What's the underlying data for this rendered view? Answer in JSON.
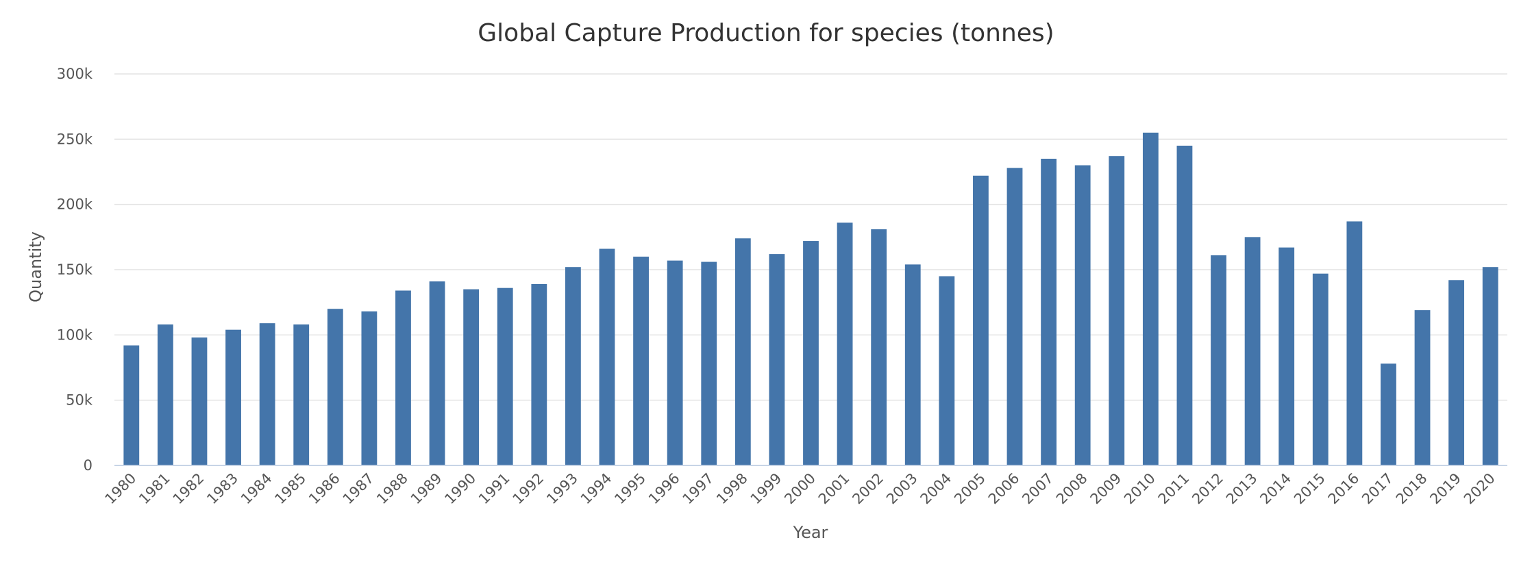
{
  "chart_data": {
    "type": "bar",
    "title": "Global Capture Production for species (tonnes)",
    "xlabel": "Year",
    "ylabel": "Quantity",
    "ylim": [
      0,
      300000
    ],
    "yticks": [
      {
        "value": 0,
        "label": "0"
      },
      {
        "value": 50000,
        "label": "50k"
      },
      {
        "value": 100000,
        "label": "100k"
      },
      {
        "value": 150000,
        "label": "150k"
      },
      {
        "value": 200000,
        "label": "200k"
      },
      {
        "value": 250000,
        "label": "250k"
      },
      {
        "value": 300000,
        "label": "300k"
      }
    ],
    "grid": true,
    "legend": "none",
    "bar_color": "#4475aa",
    "categories": [
      "1980",
      "1981",
      "1982",
      "1983",
      "1984",
      "1985",
      "1986",
      "1987",
      "1988",
      "1989",
      "1990",
      "1991",
      "1992",
      "1993",
      "1994",
      "1995",
      "1996",
      "1997",
      "1998",
      "1999",
      "2000",
      "2001",
      "2002",
      "2003",
      "2004",
      "2005",
      "2006",
      "2007",
      "2008",
      "2009",
      "2010",
      "2011",
      "2012",
      "2013",
      "2014",
      "2015",
      "2016",
      "2017",
      "2018",
      "2019",
      "2020"
    ],
    "values": [
      92000,
      108000,
      98000,
      104000,
      109000,
      108000,
      120000,
      118000,
      134000,
      141000,
      135000,
      136000,
      139000,
      152000,
      166000,
      160000,
      157000,
      156000,
      174000,
      162000,
      172000,
      186000,
      181000,
      154000,
      145000,
      222000,
      228000,
      235000,
      230000,
      237000,
      255000,
      245000,
      161000,
      175000,
      167000,
      147000,
      187000,
      78000,
      119000,
      142000,
      152000
    ]
  }
}
